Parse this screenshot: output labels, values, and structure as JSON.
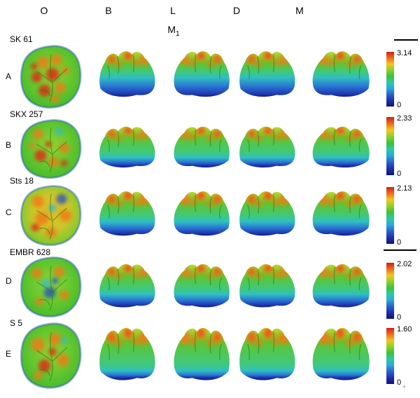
{
  "figure": {
    "column_headers": [
      "O",
      "B",
      "L",
      "D",
      "M"
    ],
    "tooth_label": {
      "base": "M",
      "subscript": "1"
    },
    "rows": [
      {
        "letter": "A",
        "specimen": "SK 61",
        "scale_max": "3.14",
        "scale_min": "0"
      },
      {
        "letter": "B",
        "specimen": "SKX 257",
        "scale_max": "2.33",
        "scale_min": "0"
      },
      {
        "letter": "C",
        "specimen": "Sts 18",
        "scale_max": "2.13",
        "scale_min": "0"
      },
      {
        "letter": "D",
        "specimen": "EMBR 628",
        "scale_max": "2.02",
        "scale_min": "0"
      },
      {
        "letter": "E",
        "specimen": "S 5",
        "scale_max": "1.60",
        "scale_min": "0"
      }
    ],
    "colormap": [
      "#cf2018",
      "#f06a1c",
      "#f2c51d",
      "#8fd02a",
      "#3cc23c",
      "#2cc9a6",
      "#2aa8da",
      "#2a62cc",
      "#1f2fae",
      "#131273"
    ],
    "heatmap_accents": {
      "orange": "#f07a14",
      "red": "#e02c12",
      "blue": "#2348c8",
      "cyan": "#2fb9d4"
    }
  }
}
